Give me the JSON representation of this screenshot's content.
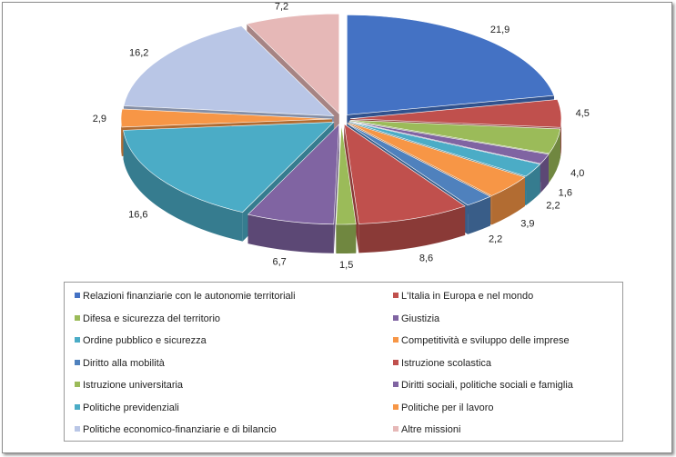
{
  "chart_data": {
    "type": "pie",
    "style": "3d-exploded",
    "legend_placement": "bottom",
    "slices": [
      {
        "name": "Relazioni finanziarie con le autonomie territoriali",
        "value": 21.9,
        "label": "21,9",
        "color": "#4472C4"
      },
      {
        "name": "L'Italia in Europa e nel mondo",
        "value": 4.5,
        "label": "4,5",
        "color": "#C0504D"
      },
      {
        "name": "Difesa e sicurezza del territorio",
        "value": 4.0,
        "label": "4,0",
        "color": "#9BBB59"
      },
      {
        "name": "Giustizia",
        "value": 1.6,
        "label": "1,6",
        "color": "#8064A2"
      },
      {
        "name": "Ordine pubblico e sicurezza",
        "value": 2.2,
        "label": "2,2",
        "color": "#4BACC6"
      },
      {
        "name": "Competitività e sviluppo delle imprese",
        "value": 3.9,
        "label": "3,9",
        "color": "#F79646"
      },
      {
        "name": "Diritto alla mobilità",
        "value": 2.2,
        "label": "2,2",
        "color": "#4F81BD"
      },
      {
        "name": "Istruzione scolastica",
        "value": 8.6,
        "label": "8,6",
        "color": "#C0504D"
      },
      {
        "name": "Istruzione universitaria",
        "value": 1.5,
        "label": "1,5",
        "color": "#9BBB59"
      },
      {
        "name": "Diritti sociali, politiche sociali e famiglia",
        "value": 6.7,
        "label": "6,7",
        "color": "#8064A2"
      },
      {
        "name": "Politiche previdenziali",
        "value": 16.6,
        "label": "16,6",
        "color": "#4BACC6"
      },
      {
        "name": "Politiche per il lavoro",
        "value": 2.9,
        "label": "2,9",
        "color": "#F79646"
      },
      {
        "name": "Politiche economico-finanziarie e di bilancio",
        "value": 16.2,
        "label": "16,2",
        "color": "#B9C6E6"
      },
      {
        "name": "Altre missioni",
        "value": 7.2,
        "label": "7,2",
        "color": "#E6B8B7"
      }
    ]
  }
}
